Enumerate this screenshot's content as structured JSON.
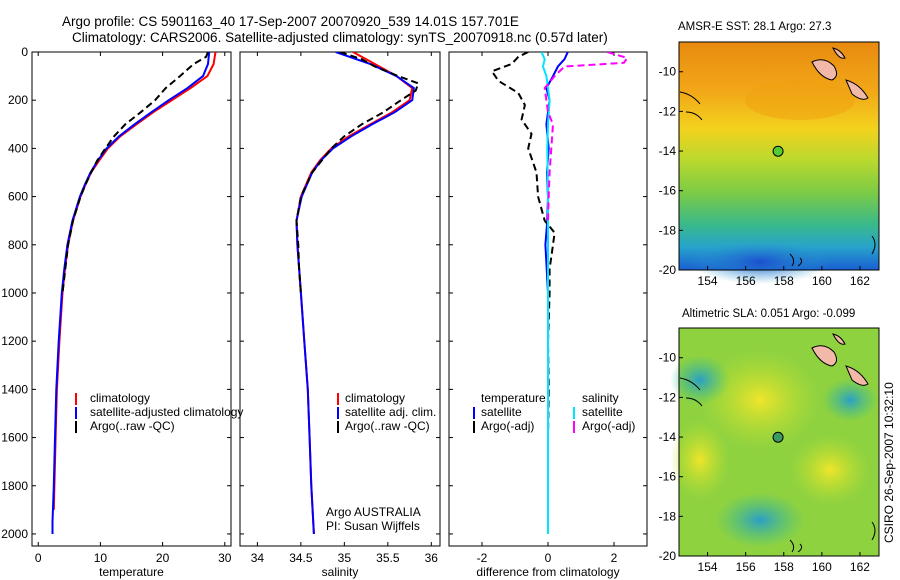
{
  "header": {
    "line1": "Argo profile: CS 5901163_40 17-Sep-2007 20070920_539 14.01S 157.701E",
    "line2": "Climatology: CARS2006. Satellite-adjusted climatology: synTS_20070918.nc (0.57d later)"
  },
  "side_label": "CSIRO 26-Sep-2007 10:32:10",
  "depth_ticks": [
    "0",
    "200",
    "400",
    "600",
    "800",
    "1000",
    "1200",
    "1400",
    "1600",
    "1800",
    "2000"
  ],
  "colors": {
    "climatology": "#ff0000",
    "satellite": "#0000ff",
    "argo": "#000000",
    "sal_satellite": "#00e5ff",
    "sal_argo": "#ff00ff"
  },
  "chart_data": [
    {
      "type": "line",
      "name": "temperature-profile",
      "xlabel": "temperature",
      "ylabel": "",
      "xlim": [
        -1,
        31
      ],
      "ylim": [
        2050,
        0
      ],
      "xticks": [
        0,
        10,
        20,
        30
      ],
      "xtick_labels": [
        "0",
        "10",
        "20",
        "30"
      ],
      "legend": [
        "climatology",
        "satellite-adjusted climatology",
        "Argo(..raw -QC)"
      ],
      "series": [
        {
          "name": "climatology",
          "color": "#ff0000",
          "style": "solid",
          "depth": [
            0,
            50,
            100,
            150,
            200,
            250,
            300,
            350,
            400,
            450,
            500,
            550,
            600,
            650,
            700,
            800,
            900,
            1000,
            1200,
            1400,
            1600,
            1800,
            1900
          ],
          "values": [
            28.5,
            28.2,
            27.2,
            24.5,
            21.5,
            18.5,
            15.8,
            13.2,
            11.2,
            9.8,
            8.5,
            7.6,
            6.8,
            6.2,
            5.6,
            4.8,
            4.3,
            3.9,
            3.4,
            3.0,
            2.8,
            2.6,
            2.5
          ]
        },
        {
          "name": "satellite-adjusted",
          "color": "#0000ff",
          "style": "solid",
          "depth": [
            0,
            50,
            100,
            150,
            200,
            250,
            300,
            350,
            400,
            450,
            500,
            550,
            600,
            650,
            700,
            800,
            900,
            1000,
            1200,
            1400,
            1600,
            1800,
            1950,
            2000
          ],
          "values": [
            27.5,
            27.3,
            26.5,
            24.0,
            21.0,
            18.2,
            15.5,
            13.0,
            11.0,
            9.6,
            8.4,
            7.5,
            6.7,
            6.1,
            5.5,
            4.7,
            4.2,
            3.8,
            3.3,
            2.9,
            2.7,
            2.5,
            2.3,
            2.3
          ]
        },
        {
          "name": "Argo",
          "color": "#000000",
          "style": "dashed",
          "depth": [
            0,
            20,
            50,
            100,
            150,
            200,
            250,
            300,
            350,
            400,
            450,
            500,
            550,
            600,
            700,
            800,
            1000
          ],
          "values": [
            27.3,
            27.0,
            25.0,
            22.8,
            20.5,
            18.8,
            16.5,
            14.0,
            12.2,
            10.8,
            9.5,
            8.5,
            7.6,
            6.8,
            5.6,
            4.8,
            3.9
          ]
        }
      ]
    },
    {
      "type": "line",
      "name": "salinity-profile",
      "xlabel": "salinity",
      "ylabel": "",
      "xlim": [
        33.8,
        36.1
      ],
      "ylim": [
        2050,
        0
      ],
      "xticks": [
        34,
        34.5,
        35,
        35.5,
        36
      ],
      "xtick_labels": [
        "34",
        "34.5",
        "35",
        "35.5",
        "36"
      ],
      "legend": [
        "climatology",
        "satellite adj. clim.",
        "Argo(..raw -QC)"
      ],
      "annotation": [
        "Argo AUSTRALIA",
        "PI: Susan Wijffels"
      ],
      "series": [
        {
          "name": "climatology",
          "color": "#ff0000",
          "style": "solid",
          "depth": [
            0,
            50,
            100,
            150,
            200,
            250,
            300,
            350,
            400,
            450,
            500,
            600,
            700,
            800,
            1000,
            1200,
            1400,
            1600,
            1800,
            2000
          ],
          "values": [
            35.1,
            35.35,
            35.6,
            35.78,
            35.75,
            35.55,
            35.3,
            35.05,
            34.85,
            34.72,
            34.62,
            34.5,
            34.45,
            34.46,
            34.5,
            34.54,
            34.58,
            34.6,
            34.62,
            34.65
          ]
        },
        {
          "name": "satellite-adjusted",
          "color": "#0000ff",
          "style": "solid",
          "depth": [
            0,
            50,
            100,
            150,
            200,
            250,
            300,
            350,
            400,
            450,
            500,
            600,
            700,
            800,
            1000,
            1200,
            1400,
            1600,
            1800,
            2000
          ],
          "values": [
            34.9,
            35.3,
            35.6,
            35.8,
            35.78,
            35.58,
            35.32,
            35.08,
            34.87,
            34.73,
            34.63,
            34.51,
            34.45,
            34.46,
            34.5,
            34.54,
            34.58,
            34.6,
            34.62,
            34.65
          ]
        },
        {
          "name": "Argo",
          "color": "#000000",
          "style": "dashed",
          "depth": [
            0,
            30,
            60,
            100,
            130,
            160,
            200,
            250,
            300,
            350,
            400,
            500,
            600,
            700,
            800,
            900,
            1000
          ],
          "values": [
            34.95,
            35.2,
            35.35,
            35.62,
            35.85,
            35.82,
            35.65,
            35.45,
            35.2,
            35.0,
            34.85,
            34.63,
            34.5,
            34.45,
            34.47,
            34.48,
            34.5
          ]
        }
      ]
    },
    {
      "type": "line",
      "name": "difference-profile",
      "xlabel": "difference from climatology",
      "ylabel": "",
      "xlim": [
        -3,
        3
      ],
      "ylim": [
        2050,
        0
      ],
      "xticks": [
        -2,
        0,
        2
      ],
      "xtick_labels": [
        "-2",
        "0",
        "2"
      ],
      "legend_headers": [
        "temperature",
        "salinity"
      ],
      "legend": [
        "satellite",
        "Argo(-adj)",
        "satellite",
        "Argo(-adj)"
      ],
      "series": [
        {
          "name": "temperature satellite",
          "color": "#0000ff",
          "style": "solid",
          "depth": [
            0,
            30,
            60,
            100,
            150,
            200,
            300,
            400,
            500,
            600,
            700,
            800,
            1000,
            1200,
            1500,
            2000
          ],
          "values": [
            0.6,
            0.5,
            0.3,
            0.15,
            -0.05,
            0.05,
            -0.05,
            0.02,
            -0.03,
            0.0,
            -0.02,
            -0.08,
            0.0,
            0.0,
            0.0,
            0.0
          ]
        },
        {
          "name": "temperature Argo",
          "color": "#000000",
          "style": "dashed",
          "depth": [
            0,
            20,
            50,
            80,
            120,
            170,
            220,
            280,
            340,
            400,
            500,
            600,
            700,
            750,
            800,
            900,
            1000,
            1200,
            1400,
            1600,
            1800,
            1900
          ],
          "values": [
            -0.6,
            -0.9,
            -1.1,
            -1.7,
            -1.5,
            -0.9,
            -0.7,
            -0.8,
            -0.5,
            -0.6,
            -0.35,
            -0.3,
            -0.1,
            0.2,
            0.15,
            0.05,
            0.05,
            0.0,
            0.02,
            0.0,
            0.0,
            0.0
          ]
        },
        {
          "name": "salinity satellite",
          "color": "#00e5ff",
          "style": "solid",
          "depth": [
            0,
            30,
            60,
            100,
            150,
            200,
            300,
            400,
            600,
            800,
            1000,
            1500,
            2000
          ],
          "values": [
            -0.2,
            -0.1,
            -0.15,
            -0.05,
            0.0,
            0.05,
            0.0,
            -0.02,
            0.0,
            0.0,
            0.0,
            0.0,
            0.0
          ]
        },
        {
          "name": "salinity Argo",
          "color": "#ff00ff",
          "style": "dashed",
          "depth": [
            0,
            25,
            45,
            60,
            100,
            150,
            200,
            250,
            300,
            400,
            500,
            600,
            700
          ],
          "values": [
            1.8,
            2.4,
            2.3,
            0.5,
            0.2,
            -0.1,
            -0.05,
            0.0,
            0.15,
            0.1,
            0.05,
            0.02,
            0.0
          ]
        }
      ]
    },
    {
      "type": "heatmap",
      "name": "sst-map",
      "title": "AMSR-E SST: 28.1  Argo: 27.3",
      "xlim": [
        152.5,
        163
      ],
      "ylim": [
        -20,
        -8.5
      ],
      "xticks": [
        154,
        156,
        158,
        160,
        162
      ],
      "yticks": [
        -10,
        -12,
        -14,
        -16,
        -18,
        -20
      ],
      "xtick_labels": [
        "154",
        "156",
        "158",
        "160",
        "162"
      ],
      "ytick_labels": [
        "-10",
        "-12",
        "-14",
        "-16",
        "-18",
        "-20"
      ],
      "marker": {
        "lon": 157.701,
        "lat": -14.01
      }
    },
    {
      "type": "heatmap",
      "name": "sla-map",
      "title": "Altimetric SLA: 0.051  Argo: -0.099",
      "xlim": [
        152.5,
        163
      ],
      "ylim": [
        -20,
        -8.5
      ],
      "xticks": [
        154,
        156,
        158,
        160,
        162
      ],
      "yticks": [
        -10,
        -12,
        -14,
        -16,
        -18,
        -20
      ],
      "xtick_labels": [
        "154",
        "156",
        "158",
        "160",
        "162"
      ],
      "ytick_labels": [
        "-10",
        "-12",
        "-14",
        "-16",
        "-18",
        "-20"
      ],
      "marker": {
        "lon": 157.701,
        "lat": -14.01
      }
    }
  ]
}
